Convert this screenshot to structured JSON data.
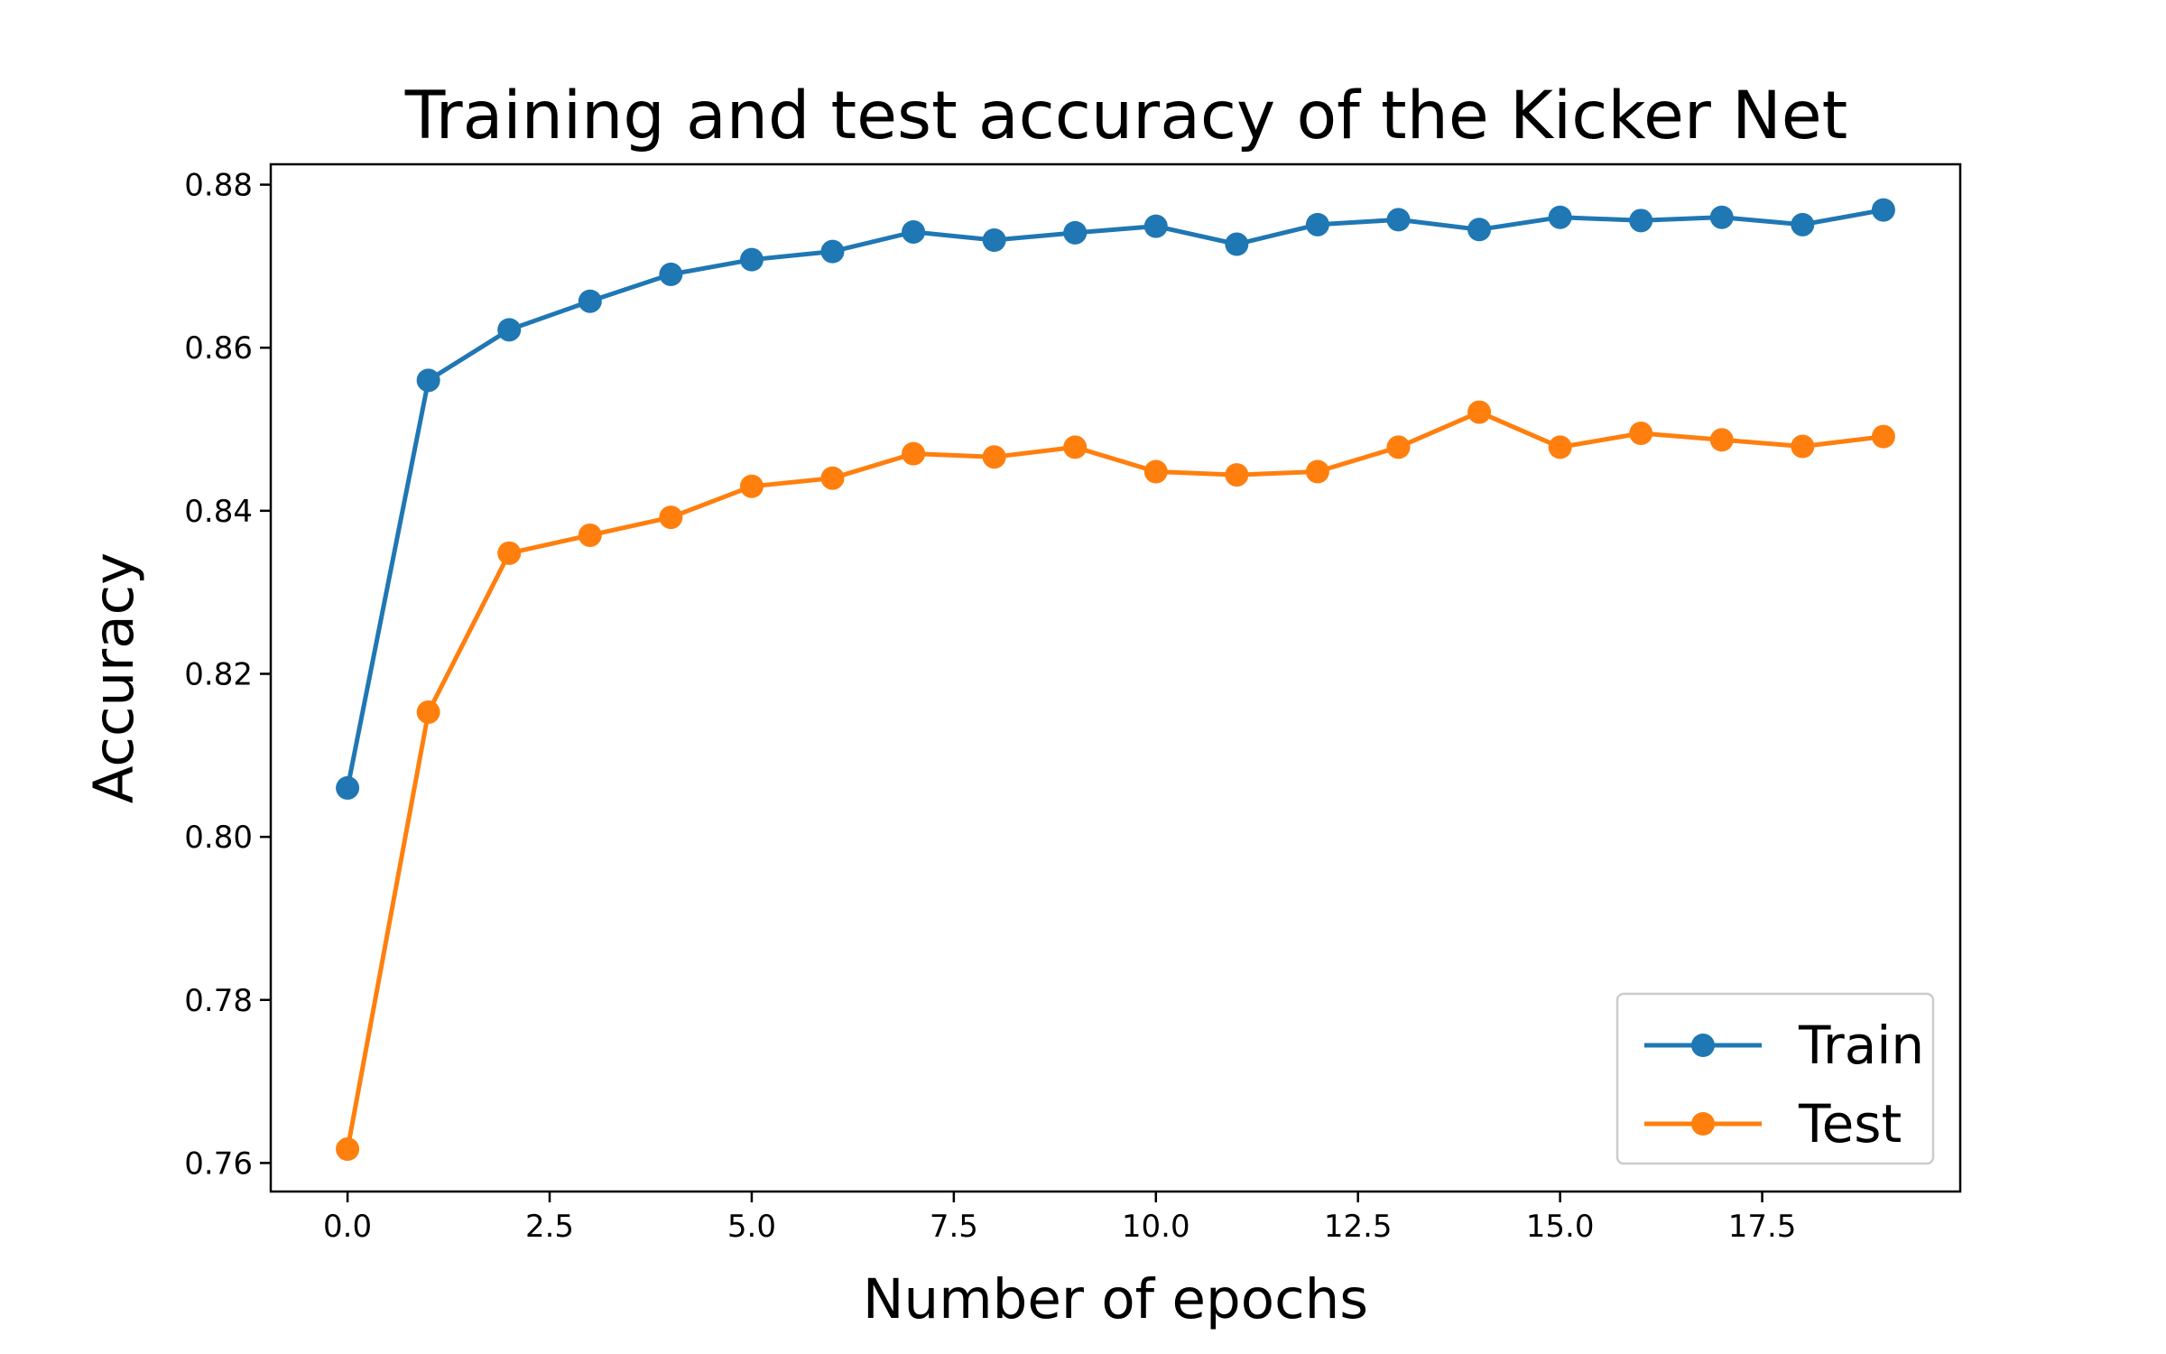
{
  "chart_data": {
    "type": "line",
    "title": "Training and test accuracy of the Kicker Net",
    "xlabel": "Number of epochs",
    "ylabel": "Accuracy",
    "xlim": [
      -0.95,
      19.95
    ],
    "ylim": [
      0.7565,
      0.8825
    ],
    "x_ticks": [
      0.0,
      2.5,
      5.0,
      7.5,
      10.0,
      12.5,
      15.0,
      17.5
    ],
    "x_tick_labels": [
      "0.0",
      "2.5",
      "5.0",
      "7.5",
      "10.0",
      "12.5",
      "15.0",
      "17.5"
    ],
    "y_ticks": [
      0.76,
      0.78,
      0.8,
      0.82,
      0.84,
      0.86,
      0.88
    ],
    "y_tick_labels": [
      "0.76",
      "0.78",
      "0.80",
      "0.82",
      "0.84",
      "0.86",
      "0.88"
    ],
    "grid": false,
    "legend_position": "lower-right",
    "x": [
      0,
      1,
      2,
      3,
      4,
      5,
      6,
      7,
      8,
      9,
      10,
      11,
      12,
      13,
      14,
      15,
      16,
      17,
      18,
      19
    ],
    "series": [
      {
        "name": "Train",
        "color": "#1f77b4",
        "marker": "circle",
        "values": [
          0.806,
          0.856,
          0.8622,
          0.8657,
          0.869,
          0.8708,
          0.8718,
          0.8742,
          0.8732,
          0.8741,
          0.8749,
          0.8727,
          0.8751,
          0.8757,
          0.8745,
          0.876,
          0.8756,
          0.876,
          0.8751,
          0.8769
        ]
      },
      {
        "name": "Test",
        "color": "#ff7f0e",
        "marker": "circle",
        "values": [
          0.7617,
          0.8153,
          0.8348,
          0.837,
          0.8392,
          0.843,
          0.844,
          0.847,
          0.8466,
          0.8478,
          0.8448,
          0.8444,
          0.8448,
          0.8478,
          0.8521,
          0.8478,
          0.8495,
          0.8487,
          0.8479,
          0.8491
        ]
      }
    ]
  }
}
